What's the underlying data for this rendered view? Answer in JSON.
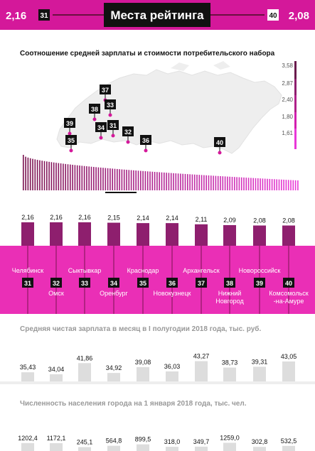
{
  "header": {
    "title": "Места рейтинга",
    "left_value": "2,16",
    "left_rank": "31",
    "right_rank": "40",
    "right_value": "2,08"
  },
  "map_section": {
    "title": "Соотношение средней зарплаты и стоимости потребительского набора",
    "scale_labels": [
      "3,58",
      "2,87",
      "2,40",
      "1,80",
      "1,61"
    ],
    "scale_colors": [
      "#6a1b4d",
      "#8e1f6e",
      "#b0208a",
      "#d21fb0",
      "#e838d8"
    ],
    "markers": [
      "37",
      "38",
      "33",
      "39",
      "34",
      "31",
      "32",
      "36",
      "35",
      "40"
    ]
  },
  "colors": {
    "accent": "#d4189a",
    "dark": "#111111",
    "band": "#ea2fb6",
    "deep": "#7a1450",
    "gray_bar": "#dddddd"
  },
  "chart_data": [
    {
      "type": "bar",
      "title": "",
      "categories": [
        "Челябинск",
        "Омск",
        "Сыктывкар",
        "Оренбург",
        "Краснодар",
        "Новокузнецк",
        "Архангельск",
        "Нижний Новгород",
        "Новороссийск",
        "Комсомольск -на-Амуре"
      ],
      "ranks": [
        "31",
        "32",
        "33",
        "34",
        "35",
        "36",
        "37",
        "38",
        "39",
        "40"
      ],
      "values": [
        2.16,
        2.16,
        2.16,
        2.15,
        2.14,
        2.14,
        2.11,
        2.09,
        2.08,
        2.08
      ],
      "value_labels": [
        "2,16",
        "2,16",
        "2,16",
        "2,15",
        "2,14",
        "2,14",
        "2,11",
        "2,09",
        "2,08",
        "2,08"
      ]
    },
    {
      "type": "bar",
      "title": "Средняя чистая зарплата в месяц в I полугодии 2018 года, тыс. руб.",
      "values": [
        35.43,
        34.04,
        41.86,
        34.92,
        39.08,
        36.03,
        43.27,
        38.73,
        39.31,
        43.05
      ],
      "value_labels": [
        "35,43",
        "34,04",
        "41,86",
        "34,92",
        "39,08",
        "36,03",
        "43,27",
        "38,73",
        "39,31",
        "43,05"
      ]
    },
    {
      "type": "bar",
      "title": "Численность населения города на 1 января 2018 года, тыс. чел.",
      "values": [
        1202.4,
        1172.1,
        245.1,
        564.8,
        899.5,
        318.0,
        349.7,
        1259.0,
        302.8,
        532.5
      ],
      "value_labels": [
        "1202,4",
        "1172,1",
        "245,1",
        "564,8",
        "899,5",
        "318,0",
        "349,7",
        "1259,0",
        "302,8",
        "532,5"
      ]
    }
  ]
}
